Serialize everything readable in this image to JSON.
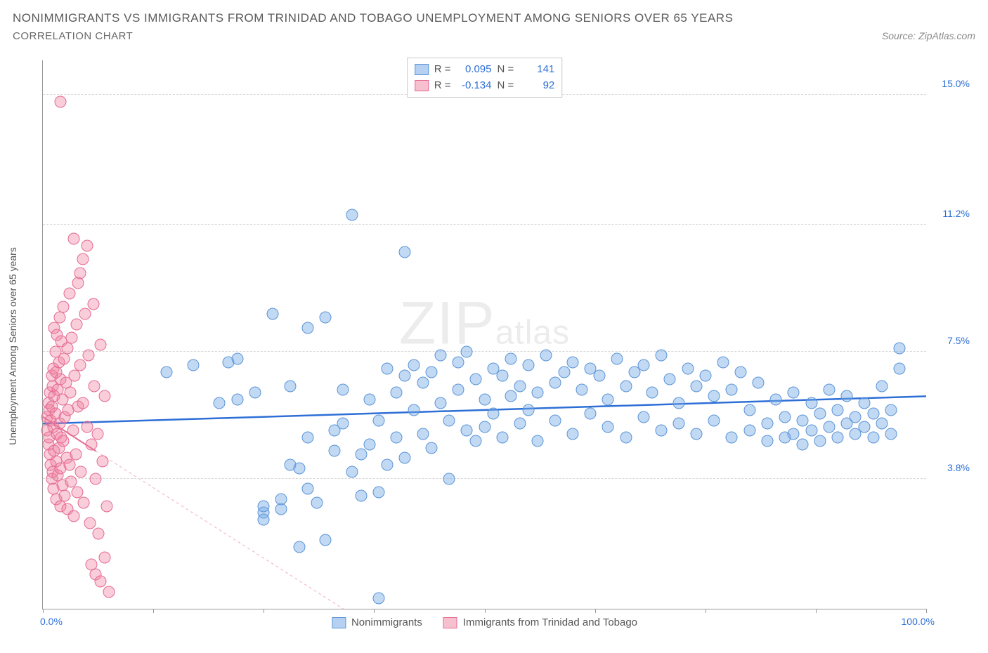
{
  "title": "NONIMMIGRANTS VS IMMIGRANTS FROM TRINIDAD AND TOBAGO UNEMPLOYMENT AMONG SENIORS OVER 65 YEARS",
  "subtitle": "CORRELATION CHART",
  "source": "Source: ZipAtlas.com",
  "y_axis_label": "Unemployment Among Seniors over 65 years",
  "watermark_big": "ZIP",
  "watermark_small": "atlas",
  "chart": {
    "type": "scatter",
    "xlim": [
      0,
      100
    ],
    "ylim": [
      0,
      16
    ],
    "x_min_label": "0.0%",
    "x_max_label": "100.0%",
    "x_ticks": [
      0,
      12.5,
      25,
      37.5,
      50,
      62.5,
      75,
      87.5,
      100
    ],
    "y_gridlines": [
      {
        "v": 3.8,
        "label": "3.8%"
      },
      {
        "v": 7.5,
        "label": "7.5%"
      },
      {
        "v": 11.2,
        "label": "11.2%"
      },
      {
        "v": 15.0,
        "label": "15.0%"
      }
    ],
    "background_color": "#ffffff",
    "grid_color": "#d8d8d8",
    "marker_size": 17,
    "series": [
      {
        "name": "Nonimmigrants",
        "color_fill": "rgba(120,170,230,0.45)",
        "color_stroke": "#5a94d6",
        "R": "0.095",
        "N": "141",
        "trend": {
          "x1": 0,
          "y1": 5.4,
          "x2": 100,
          "y2": 6.2,
          "color": "#2e6fd6",
          "width": 2.5,
          "dash": "none",
          "extrapolate_dash": false
        },
        "points": [
          [
            14,
            6.9
          ],
          [
            17,
            7.1
          ],
          [
            20,
            6.0
          ],
          [
            21,
            7.2
          ],
          [
            22,
            7.3
          ],
          [
            22,
            6.1
          ],
          [
            24,
            6.3
          ],
          [
            25,
            2.8
          ],
          [
            25,
            3.0
          ],
          [
            25,
            2.6
          ],
          [
            26,
            8.6
          ],
          [
            27,
            2.9
          ],
          [
            27,
            3.2
          ],
          [
            28,
            6.5
          ],
          [
            28,
            4.2
          ],
          [
            29,
            4.1
          ],
          [
            29,
            1.8
          ],
          [
            30,
            8.2
          ],
          [
            30,
            5.0
          ],
          [
            30,
            3.5
          ],
          [
            31,
            3.1
          ],
          [
            32,
            8.5
          ],
          [
            32,
            2.0
          ],
          [
            33,
            5.2
          ],
          [
            33,
            4.6
          ],
          [
            34,
            6.4
          ],
          [
            34,
            5.4
          ],
          [
            35,
            11.5
          ],
          [
            35,
            4.0
          ],
          [
            36,
            4.5
          ],
          [
            36,
            3.3
          ],
          [
            37,
            6.1
          ],
          [
            37,
            4.8
          ],
          [
            38,
            5.5
          ],
          [
            38,
            3.4
          ],
          [
            38,
            0.3
          ],
          [
            39,
            7.0
          ],
          [
            39,
            4.2
          ],
          [
            40,
            6.3
          ],
          [
            40,
            5.0
          ],
          [
            41,
            10.4
          ],
          [
            41,
            6.8
          ],
          [
            41,
            4.4
          ],
          [
            42,
            7.1
          ],
          [
            42,
            5.8
          ],
          [
            43,
            6.6
          ],
          [
            43,
            5.1
          ],
          [
            44,
            6.9
          ],
          [
            44,
            4.7
          ],
          [
            45,
            7.4
          ],
          [
            45,
            6.0
          ],
          [
            46,
            3.8
          ],
          [
            46,
            5.5
          ],
          [
            47,
            7.2
          ],
          [
            47,
            6.4
          ],
          [
            48,
            7.5
          ],
          [
            48,
            5.2
          ],
          [
            49,
            6.7
          ],
          [
            49,
            4.9
          ],
          [
            50,
            6.1
          ],
          [
            50,
            5.3
          ],
          [
            51,
            7.0
          ],
          [
            51,
            5.7
          ],
          [
            52,
            6.8
          ],
          [
            52,
            5.0
          ],
          [
            53,
            7.3
          ],
          [
            53,
            6.2
          ],
          [
            54,
            6.5
          ],
          [
            54,
            5.4
          ],
          [
            55,
            7.1
          ],
          [
            55,
            5.8
          ],
          [
            56,
            6.3
          ],
          [
            56,
            4.9
          ],
          [
            57,
            7.4
          ],
          [
            58,
            6.6
          ],
          [
            58,
            5.5
          ],
          [
            59,
            6.9
          ],
          [
            60,
            7.2
          ],
          [
            60,
            5.1
          ],
          [
            61,
            6.4
          ],
          [
            62,
            7.0
          ],
          [
            62,
            5.7
          ],
          [
            63,
            6.8
          ],
          [
            64,
            6.1
          ],
          [
            64,
            5.3
          ],
          [
            65,
            7.3
          ],
          [
            66,
            6.5
          ],
          [
            66,
            5.0
          ],
          [
            67,
            6.9
          ],
          [
            68,
            7.1
          ],
          [
            68,
            5.6
          ],
          [
            69,
            6.3
          ],
          [
            70,
            7.4
          ],
          [
            70,
            5.2
          ],
          [
            71,
            6.7
          ],
          [
            72,
            6.0
          ],
          [
            72,
            5.4
          ],
          [
            73,
            7.0
          ],
          [
            74,
            6.5
          ],
          [
            74,
            5.1
          ],
          [
            75,
            6.8
          ],
          [
            76,
            6.2
          ],
          [
            76,
            5.5
          ],
          [
            77,
            7.2
          ],
          [
            78,
            6.4
          ],
          [
            78,
            5.0
          ],
          [
            79,
            6.9
          ],
          [
            80,
            5.8
          ],
          [
            80,
            5.2
          ],
          [
            81,
            6.6
          ],
          [
            82,
            5.4
          ],
          [
            82,
            4.9
          ],
          [
            83,
            6.1
          ],
          [
            84,
            5.6
          ],
          [
            84,
            5.0
          ],
          [
            85,
            6.3
          ],
          [
            85,
            5.1
          ],
          [
            86,
            5.5
          ],
          [
            86,
            4.8
          ],
          [
            87,
            6.0
          ],
          [
            87,
            5.2
          ],
          [
            88,
            5.7
          ],
          [
            88,
            4.9
          ],
          [
            89,
            6.4
          ],
          [
            89,
            5.3
          ],
          [
            90,
            5.8
          ],
          [
            90,
            5.0
          ],
          [
            91,
            6.2
          ],
          [
            91,
            5.4
          ],
          [
            92,
            5.6
          ],
          [
            92,
            5.1
          ],
          [
            93,
            6.0
          ],
          [
            93,
            5.3
          ],
          [
            94,
            5.7
          ],
          [
            94,
            5.0
          ],
          [
            95,
            6.5
          ],
          [
            95,
            5.4
          ],
          [
            96,
            5.8
          ],
          [
            96,
            5.1
          ],
          [
            97,
            7.0
          ],
          [
            97,
            7.6
          ]
        ]
      },
      {
        "name": "Immigrants from Trinidad and Tobago",
        "color_fill": "rgba(240,130,160,0.40)",
        "color_stroke": "#e46a93",
        "R": "-0.134",
        "N": "92",
        "trend": {
          "x1": 0,
          "y1": 5.6,
          "x2": 6,
          "y2": 4.6,
          "color": "#e46a93",
          "width": 2,
          "dash": "none",
          "extrapolate_dash": true,
          "ex_x2": 34,
          "ex_y2": 0
        },
        "points": [
          [
            0.5,
            5.6
          ],
          [
            0.5,
            5.2
          ],
          [
            0.6,
            6.0
          ],
          [
            0.6,
            4.8
          ],
          [
            0.7,
            5.8
          ],
          [
            0.7,
            5.0
          ],
          [
            0.8,
            6.3
          ],
          [
            0.8,
            4.5
          ],
          [
            0.9,
            5.5
          ],
          [
            0.9,
            4.2
          ],
          [
            1.0,
            6.8
          ],
          [
            1.0,
            5.9
          ],
          [
            1.0,
            3.8
          ],
          [
            1.1,
            6.5
          ],
          [
            1.1,
            4.0
          ],
          [
            1.2,
            7.0
          ],
          [
            1.2,
            5.3
          ],
          [
            1.2,
            3.5
          ],
          [
            1.3,
            8.2
          ],
          [
            1.3,
            6.2
          ],
          [
            1.3,
            4.6
          ],
          [
            1.4,
            7.5
          ],
          [
            1.4,
            5.7
          ],
          [
            1.5,
            6.9
          ],
          [
            1.5,
            4.3
          ],
          [
            1.5,
            3.2
          ],
          [
            1.6,
            8.0
          ],
          [
            1.6,
            5.1
          ],
          [
            1.7,
            6.4
          ],
          [
            1.7,
            3.9
          ],
          [
            1.8,
            7.2
          ],
          [
            1.8,
            4.7
          ],
          [
            1.9,
            8.5
          ],
          [
            1.9,
            5.4
          ],
          [
            2.0,
            6.7
          ],
          [
            2.0,
            4.1
          ],
          [
            2.0,
            3.0
          ],
          [
            2.1,
            7.8
          ],
          [
            2.1,
            5.0
          ],
          [
            2.2,
            6.1
          ],
          [
            2.2,
            3.6
          ],
          [
            2.3,
            8.8
          ],
          [
            2.3,
            4.9
          ],
          [
            2.4,
            7.3
          ],
          [
            2.5,
            5.6
          ],
          [
            2.5,
            3.3
          ],
          [
            2.6,
            6.6
          ],
          [
            2.7,
            4.4
          ],
          [
            2.8,
            7.6
          ],
          [
            2.8,
            2.9
          ],
          [
            2.9,
            5.8
          ],
          [
            3.0,
            9.2
          ],
          [
            3.0,
            4.2
          ],
          [
            3.1,
            6.3
          ],
          [
            3.2,
            3.7
          ],
          [
            3.3,
            7.9
          ],
          [
            3.4,
            5.2
          ],
          [
            3.5,
            2.7
          ],
          [
            3.6,
            6.8
          ],
          [
            3.7,
            4.5
          ],
          [
            3.8,
            8.3
          ],
          [
            3.9,
            3.4
          ],
          [
            4.0,
            9.5
          ],
          [
            4.0,
            5.9
          ],
          [
            4.2,
            7.1
          ],
          [
            4.3,
            4.0
          ],
          [
            4.5,
            10.2
          ],
          [
            4.5,
            6.0
          ],
          [
            4.6,
            3.1
          ],
          [
            4.8,
            8.6
          ],
          [
            5.0,
            10.6
          ],
          [
            5.0,
            5.3
          ],
          [
            5.2,
            7.4
          ],
          [
            5.3,
            2.5
          ],
          [
            5.5,
            4.8
          ],
          [
            5.5,
            1.3
          ],
          [
            5.7,
            8.9
          ],
          [
            5.8,
            6.5
          ],
          [
            6.0,
            3.8
          ],
          [
            6.0,
            1.0
          ],
          [
            6.2,
            5.1
          ],
          [
            6.3,
            2.2
          ],
          [
            6.5,
            7.7
          ],
          [
            6.5,
            0.8
          ],
          [
            6.8,
            4.3
          ],
          [
            7.0,
            6.2
          ],
          [
            7.0,
            1.5
          ],
          [
            7.2,
            3.0
          ],
          [
            7.5,
            0.5
          ],
          [
            2.0,
            14.8
          ],
          [
            3.5,
            10.8
          ],
          [
            4.2,
            9.8
          ]
        ]
      }
    ]
  },
  "legend_top": [
    {
      "swatch": "blue",
      "r_label": "R =",
      "r_val": "0.095",
      "n_label": "N =",
      "n_val": "141"
    },
    {
      "swatch": "pink",
      "r_label": "R =",
      "r_val": "-0.134",
      "n_label": "N =",
      "n_val": "92"
    }
  ],
  "legend_bottom": [
    {
      "swatch": "blue",
      "label": "Nonimmigrants"
    },
    {
      "swatch": "pink",
      "label": "Immigrants from Trinidad and Tobago"
    }
  ]
}
